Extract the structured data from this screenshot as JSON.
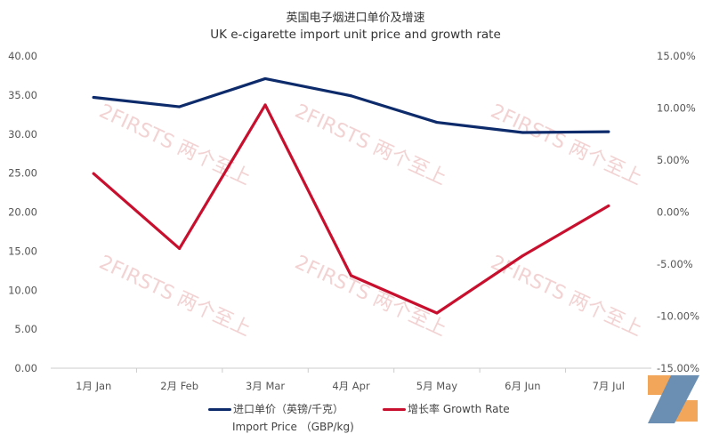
{
  "chart_data": {
    "type": "line",
    "title": "英国电子烟进口单价及增速",
    "subtitle": "UK e-cigarette import unit price and growth rate",
    "categories": [
      "1月 Jan",
      "2月 Feb",
      "3月 Mar",
      "4月 Apr",
      "5月 May",
      "6月 Jun",
      "7月 Jul"
    ],
    "y_left": {
      "ylim": [
        0,
        40
      ],
      "ticks": [
        "0.00",
        "5.00",
        "10.00",
        "15.00",
        "20.00",
        "25.00",
        "30.00",
        "35.00",
        "40.00"
      ]
    },
    "y_right": {
      "ylim": [
        -15,
        15
      ],
      "ticks": [
        "-15.00%",
        "-10.00%",
        "-5.00%",
        "0.00%",
        "5.00%",
        "10.00%",
        "15.00%"
      ]
    },
    "grid": false,
    "legend_position": "bottom",
    "series": [
      {
        "name": "进口单价（英镑/千克）",
        "name2": "Import Price （GBP/kg)",
        "axis": "left",
        "color": "#0d2a6b",
        "values": [
          34.7,
          33.5,
          37.1,
          34.9,
          31.5,
          30.2,
          30.3
        ]
      },
      {
        "name": "增长率 Growth Rate",
        "axis": "right",
        "color": "#c8102e",
        "values": [
          3.7,
          -3.5,
          10.3,
          -6.1,
          -9.7,
          -4.2,
          0.6
        ]
      }
    ],
    "watermark": "2FIRSTS 两个至上"
  }
}
